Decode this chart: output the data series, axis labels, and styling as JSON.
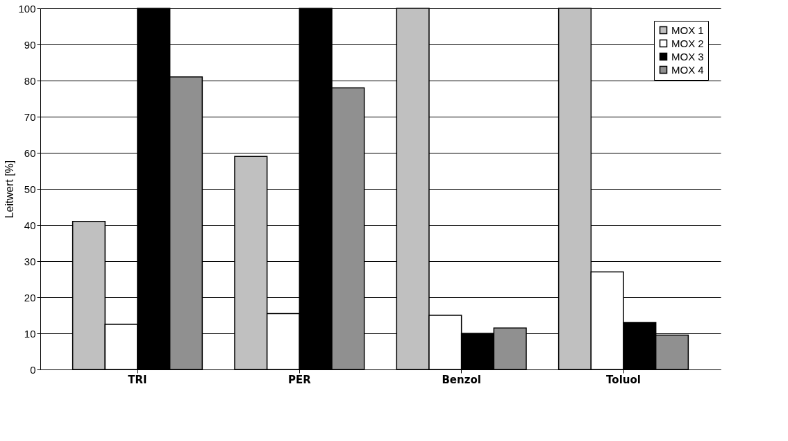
{
  "chart_data": {
    "type": "bar",
    "ylabel": "Leitwert [%]",
    "categories": [
      "TRI",
      "PER",
      "Benzol",
      "Toluol"
    ],
    "series": [
      {
        "name": "MOX 1",
        "color": "#c0c0c0",
        "values": [
          41,
          59,
          100,
          100
        ]
      },
      {
        "name": "MOX 2",
        "color": "#ffffff",
        "values": [
          12.5,
          15.5,
          15,
          27
        ]
      },
      {
        "name": "MOX 3",
        "color": "#000000",
        "values": [
          100,
          100,
          10,
          13
        ]
      },
      {
        "name": "MOX 4",
        "color": "#909090",
        "values": [
          81,
          78,
          11.5,
          9.5
        ]
      }
    ],
    "ylim": [
      0,
      100
    ],
    "yticks": [
      0,
      10,
      20,
      30,
      40,
      50,
      60,
      70,
      80,
      90,
      100
    ],
    "grid": "y",
    "legend": "top right"
  }
}
